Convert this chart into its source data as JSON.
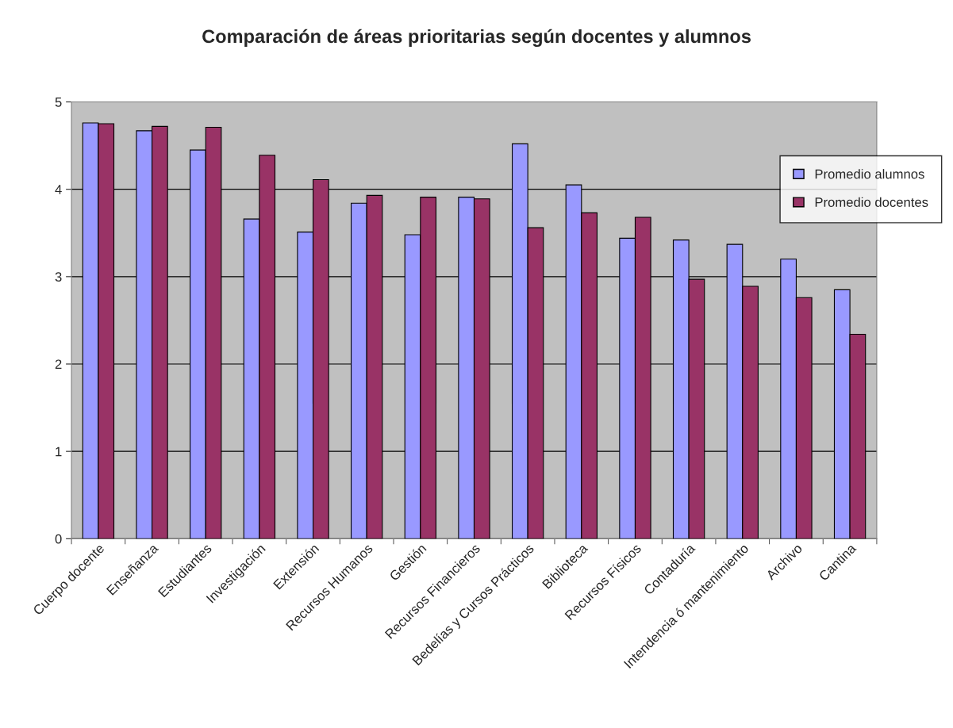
{
  "chart_data": {
    "type": "bar",
    "title": "Comparación de áreas prioritarias según docentes y alumnos",
    "categories": [
      "Cuerpo docente",
      "Enseñanza",
      "Estudiantes",
      "Investigación",
      "Extensión",
      "Recursos Humanos",
      "Gestión",
      "Recursos Financieros",
      "Bedelías y Cursos Prácticos",
      "Biblioteca",
      "Recursos Físicos",
      "Contaduría",
      "Intendencia ó mantenimiento",
      "Archivo",
      "Cantina"
    ],
    "series": [
      {
        "name": "Promedio alumnos",
        "color": "#9999ff",
        "values": [
          4.76,
          4.67,
          4.45,
          3.66,
          3.51,
          3.84,
          3.48,
          3.91,
          4.52,
          4.05,
          3.44,
          3.42,
          3.37,
          3.2,
          2.85
        ]
      },
      {
        "name": "Promedio docentes",
        "color": "#993366",
        "values": [
          4.75,
          4.72,
          4.71,
          4.39,
          4.11,
          3.93,
          3.91,
          3.89,
          3.56,
          3.73,
          3.68,
          2.97,
          2.89,
          2.76,
          2.34
        ]
      }
    ],
    "ylim": [
      0,
      5
    ],
    "yticks": [
      0,
      1,
      2,
      3,
      4,
      5
    ],
    "grid": "y",
    "legend": "right"
  }
}
